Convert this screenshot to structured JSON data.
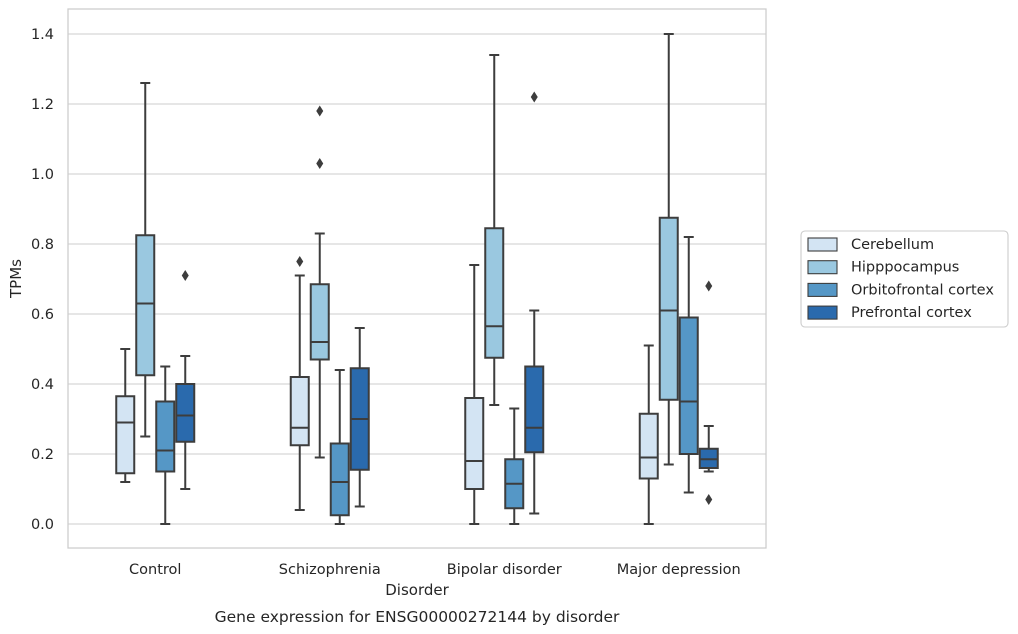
{
  "chart_data": {
    "type": "box",
    "title": "",
    "caption": "Gene expression for ENSG00000272144 by disorder",
    "xlabel": "Disorder",
    "ylabel": "TPMs",
    "ylim": [
      -0.07,
      1.47
    ],
    "yticks": [
      0.0,
      0.2,
      0.4,
      0.6,
      0.8,
      1.0,
      1.2,
      1.4
    ],
    "ytick_labels": [
      "0.0",
      "0.2",
      "0.4",
      "0.6",
      "0.8",
      "1.0",
      "1.2",
      "1.4"
    ],
    "grid": "horizontal",
    "legend_position": "right",
    "categories": [
      "Control",
      "Schizophrenia",
      "Bipolar disorder",
      "Major depression"
    ],
    "series": [
      {
        "name": "Cerebellum",
        "color": "#d3e4f3",
        "boxes": [
          {
            "min": 0.12,
            "q1": 0.145,
            "median": 0.29,
            "q3": 0.365,
            "max": 0.5,
            "outliers": []
          },
          {
            "min": 0.04,
            "q1": 0.225,
            "median": 0.275,
            "q3": 0.42,
            "max": 0.71,
            "outliers": [
              0.75
            ]
          },
          {
            "min": 0.0,
            "q1": 0.1,
            "median": 0.18,
            "q3": 0.36,
            "max": 0.74,
            "outliers": []
          },
          {
            "min": 0.0,
            "q1": 0.13,
            "median": 0.19,
            "q3": 0.315,
            "max": 0.51,
            "outliers": []
          }
        ]
      },
      {
        "name": "Hipppocampus",
        "color": "#9ac8e0",
        "boxes": [
          {
            "min": 0.25,
            "q1": 0.425,
            "median": 0.63,
            "q3": 0.825,
            "max": 1.26,
            "outliers": []
          },
          {
            "min": 0.19,
            "q1": 0.47,
            "median": 0.52,
            "q3": 0.685,
            "max": 0.83,
            "outliers": [
              1.03,
              1.18
            ]
          },
          {
            "min": 0.34,
            "q1": 0.475,
            "median": 0.565,
            "q3": 0.845,
            "max": 1.34,
            "outliers": []
          },
          {
            "min": 0.17,
            "q1": 0.355,
            "median": 0.61,
            "q3": 0.875,
            "max": 1.4,
            "outliers": []
          }
        ]
      },
      {
        "name": "Orbitofrontal cortex",
        "color": "#5597c6",
        "boxes": [
          {
            "min": 0.0,
            "q1": 0.15,
            "median": 0.21,
            "q3": 0.35,
            "max": 0.45,
            "outliers": []
          },
          {
            "min": 0.0,
            "q1": 0.025,
            "median": 0.12,
            "q3": 0.23,
            "max": 0.44,
            "outliers": []
          },
          {
            "min": 0.0,
            "q1": 0.045,
            "median": 0.115,
            "q3": 0.185,
            "max": 0.33,
            "outliers": []
          },
          {
            "min": 0.09,
            "q1": 0.2,
            "median": 0.35,
            "q3": 0.59,
            "max": 0.82,
            "outliers": []
          }
        ]
      },
      {
        "name": "Prefrontal cortex",
        "color": "#2a6aad",
        "boxes": [
          {
            "min": 0.1,
            "q1": 0.235,
            "median": 0.31,
            "q3": 0.4,
            "max": 0.48,
            "outliers": [
              0.71
            ]
          },
          {
            "min": 0.05,
            "q1": 0.155,
            "median": 0.3,
            "q3": 0.445,
            "max": 0.56,
            "outliers": []
          },
          {
            "min": 0.03,
            "q1": 0.205,
            "median": 0.275,
            "q3": 0.45,
            "max": 0.61,
            "outliers": [
              1.22
            ]
          },
          {
            "min": 0.15,
            "q1": 0.16,
            "median": 0.185,
            "q3": 0.215,
            "max": 0.28,
            "outliers": [
              0.07,
              0.68
            ]
          }
        ]
      }
    ]
  }
}
